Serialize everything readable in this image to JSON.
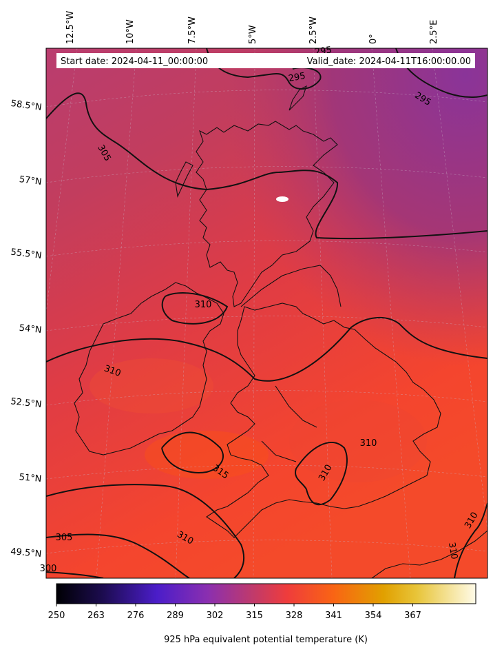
{
  "map": {
    "start_date_text": "Start date: 2024-04-11_00:00:00",
    "valid_date_text": "Valid_date: 2024-04-11T16:00:00.00",
    "lon_labels": [
      "12.5°W",
      "10°W",
      "7.5°W",
      "5°W",
      "2.5°W",
      "0°",
      "2.5°E"
    ],
    "lat_labels": [
      "58.5°N",
      "57°N",
      "55.5°N",
      "54°N",
      "52.5°N",
      "51°N",
      "49.5°N"
    ],
    "contour_labels": [
      "295",
      "295",
      "295",
      "305",
      "310",
      "310",
      "310",
      "310",
      "310",
      "310",
      "315",
      "305",
      "300",
      "310"
    ]
  },
  "colorbar": {
    "ticks": [
      "250",
      "263",
      "276",
      "289",
      "302",
      "315",
      "328",
      "341",
      "354",
      "367"
    ],
    "label": "925 hPa equivalent potential temperature (K)",
    "colors": [
      "#000004",
      "#1c0c4f",
      "#4b1dc9",
      "#8a2fb0",
      "#c13a6a",
      "#ef3c3c",
      "#f96414",
      "#e1a000",
      "#e8c53a",
      "#fffbe8"
    ]
  }
}
